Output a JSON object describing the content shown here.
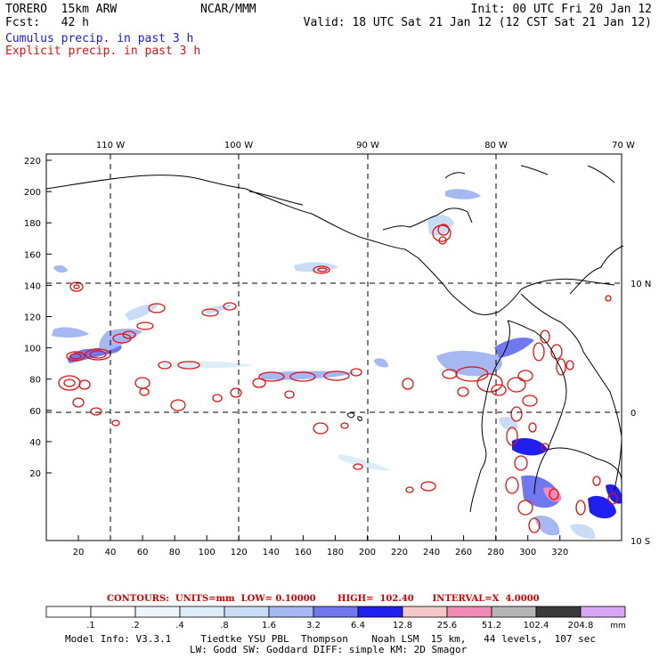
{
  "header": {
    "model": "TORERO  15km ARW",
    "org": "NCAR/MMM",
    "forecast": "Fcst:   42 h",
    "init": "Init: 00 UTC Fri 20 Jan 12",
    "valid": "Valid: 18 UTC Sat 21 Jan 12 (12 CST Sat 21 Jan 12)"
  },
  "legend": {
    "cumulus": "Cumulus precip. in past 3 h",
    "explicit": "Explicit precip. in past 3 h",
    "cumulus_color": "#1a1ad0",
    "explicit_color": "#e01010"
  },
  "map": {
    "lon_labels": [
      "110 W",
      "100 W",
      "90 W",
      "80 W",
      "70 W"
    ],
    "lat_labels": [
      "10 N",
      "0",
      "10 S"
    ],
    "y_ticks": [
      "220",
      "200",
      "180",
      "160",
      "140",
      "120",
      "100",
      "80",
      "60",
      "40",
      "20"
    ],
    "x_ticks": [
      "20",
      "40",
      "60",
      "80",
      "100",
      "120",
      "140",
      "160",
      "180",
      "200",
      "220",
      "240",
      "260",
      "280",
      "300",
      "320"
    ]
  },
  "contours_note": "CONTOURS:  UNITS=mm  LOW= 0.10000       HIGH=  102.40      INTERVAL=X  4.0000",
  "colorbar": {
    "labels": [
      ".1",
      ".2",
      ".4",
      ".8",
      "1.6",
      "3.2",
      "6.4",
      "12.8",
      "25.6",
      "51.2",
      "102.4",
      "204.8"
    ],
    "unit": "mm",
    "colors": [
      "#ffffff",
      "#ffffff",
      "#eef6fb",
      "#dbeef8",
      "#c9dcf5",
      "#a6b8f2",
      "#6f78ef",
      "#1f1ff0",
      "#f5c7c7",
      "#f28ab5",
      "#b5b5b5",
      "#3a3a3a",
      "#d9a6f5"
    ]
  },
  "model_info": {
    "line1": "Model Info: V3.3.1     Tiedtke YSU PBL  Thompson    Noah LSM  15 km,   44 levels,  107 sec",
    "line2": "LW: Godd SW: Goddard DIFF: simple KM: 2D Smagor"
  }
}
